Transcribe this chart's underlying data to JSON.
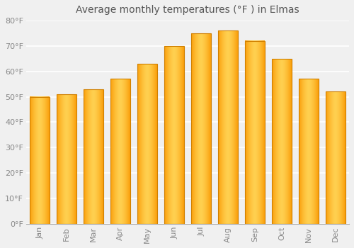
{
  "title": "Average monthly temperatures (°F ) in Elmas",
  "months": [
    "Jan",
    "Feb",
    "Mar",
    "Apr",
    "May",
    "Jun",
    "Jul",
    "Aug",
    "Sep",
    "Oct",
    "Nov",
    "Dec"
  ],
  "values": [
    50,
    51,
    53,
    57,
    63,
    70,
    75,
    76,
    72,
    65,
    57,
    52
  ],
  "bar_color_light": "#FFD060",
  "bar_color_dark": "#FFA010",
  "bar_edge_color": "#D08000",
  "ylim": [
    0,
    80
  ],
  "yticks": [
    0,
    10,
    20,
    30,
    40,
    50,
    60,
    70,
    80
  ],
  "ytick_labels": [
    "0°F",
    "10°F",
    "20°F",
    "30°F",
    "40°F",
    "50°F",
    "60°F",
    "70°F",
    "80°F"
  ],
  "background_color": "#F0F0F0",
  "grid_color": "#FFFFFF",
  "title_fontsize": 10,
  "tick_fontsize": 8,
  "tick_color": "#888888",
  "title_color": "#555555"
}
